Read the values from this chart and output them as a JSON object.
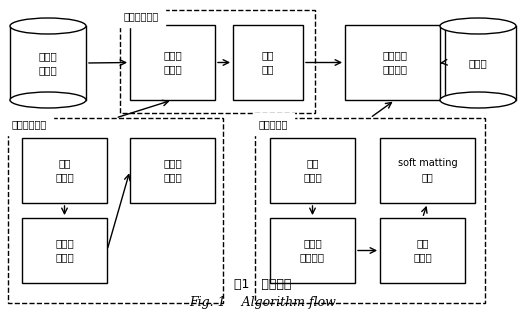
{
  "title_cn": "图1   算法流程",
  "title_en": "Fig. 1    Algorithm flow",
  "bg": "#ffffff",
  "cyl_input_text": "遥感山\n脉图像",
  "cyl_output_text": "高程图",
  "box1_text": "确定阴\n影区域",
  "box2_text": "去除\n阴影",
  "box3_text": "暗通道计\n算高程图",
  "dg1_label": "处理阴影区域",
  "dg2_label": "确定阴影区域",
  "dg3_label": "计算高程图",
  "bsp_text": "确定\n阴影点",
  "bos_text": "优化阴\n影区域",
  "bsr_text": "确定阴\n影区域",
  "bcd_text": "计算\n暗图像",
  "bsm_text": "soft matting\n优化",
  "bea_text": "估计空\n气光向量",
  "bce_text": "计算\n高程图"
}
